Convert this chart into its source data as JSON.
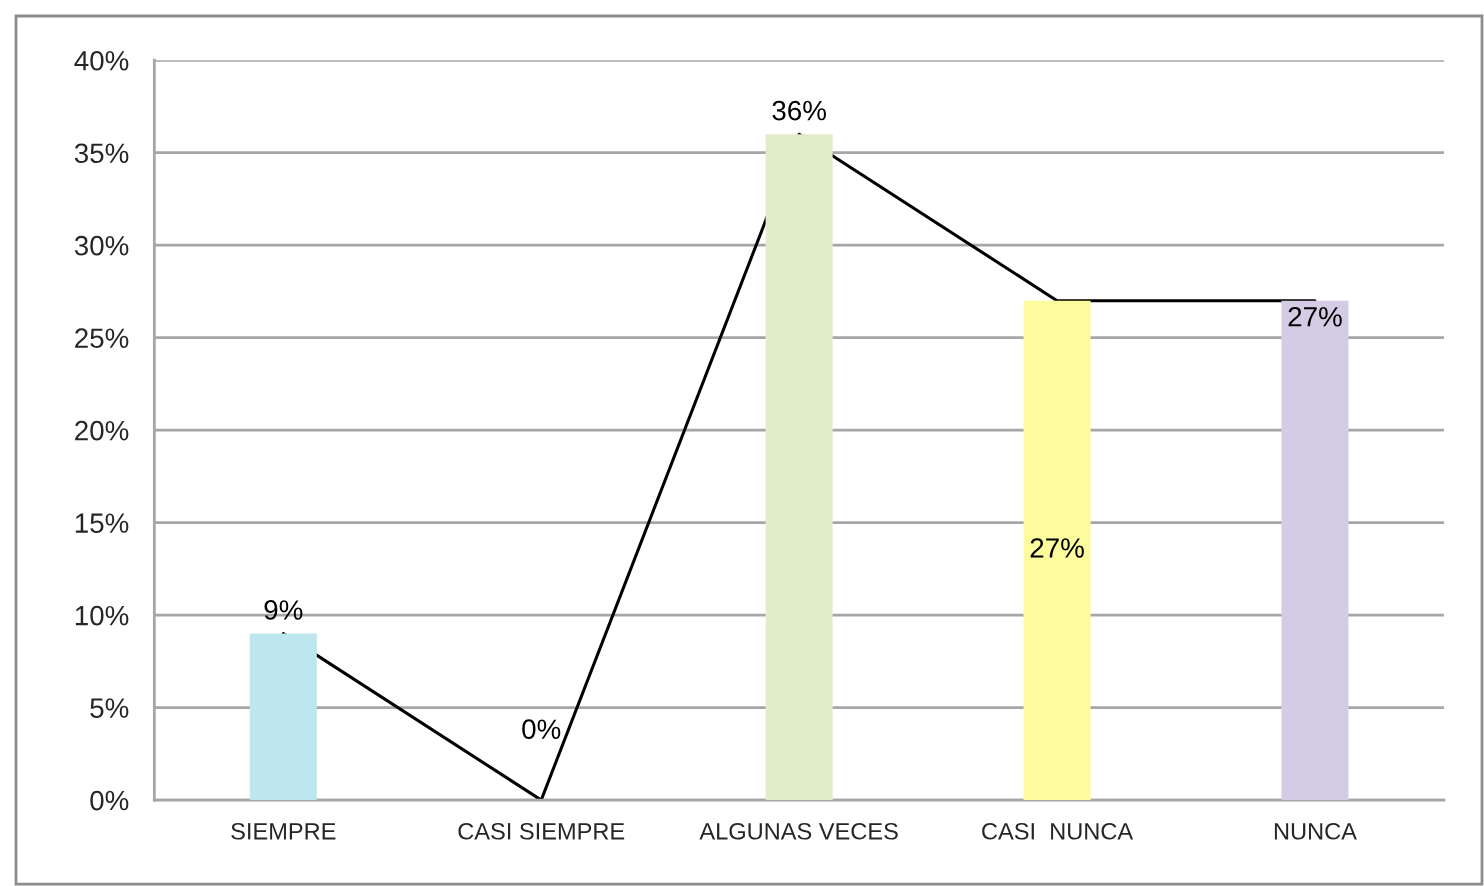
{
  "chart_data": {
    "type": "bar",
    "categories": [
      "SIEMPRE",
      "CASI SIEMPRE",
      "ALGUNAS VECES",
      "CASI  NUNCA",
      "NUNCA"
    ],
    "series": [
      {
        "colors": [
          "#bde6ef",
          "#b7c9e6",
          "#e0edc8",
          "#fdfc9c",
          "#d4cce4"
        ],
        "values": [
          9,
          0,
          36,
          27,
          27
        ],
        "value_labels": [
          "9%",
          "0%",
          "36%",
          "27%",
          "27%"
        ]
      },
      {
        "type": "line",
        "color": "#000000",
        "values": [
          9,
          0,
          36,
          27,
          27
        ]
      }
    ],
    "ylim": [
      0,
      40
    ],
    "yticks": [
      {
        "value": 0,
        "label": "0%"
      },
      {
        "value": 5,
        "label": "5%"
      },
      {
        "value": 10,
        "label": "10%"
      },
      {
        "value": 15,
        "label": "15%"
      },
      {
        "value": 20,
        "label": "20%"
      },
      {
        "value": 25,
        "label": "25%"
      },
      {
        "value": 30,
        "label": "30%"
      },
      {
        "value": 35,
        "label": "35%"
      },
      {
        "value": 40,
        "label": "40%"
      }
    ],
    "grid": "y"
  }
}
